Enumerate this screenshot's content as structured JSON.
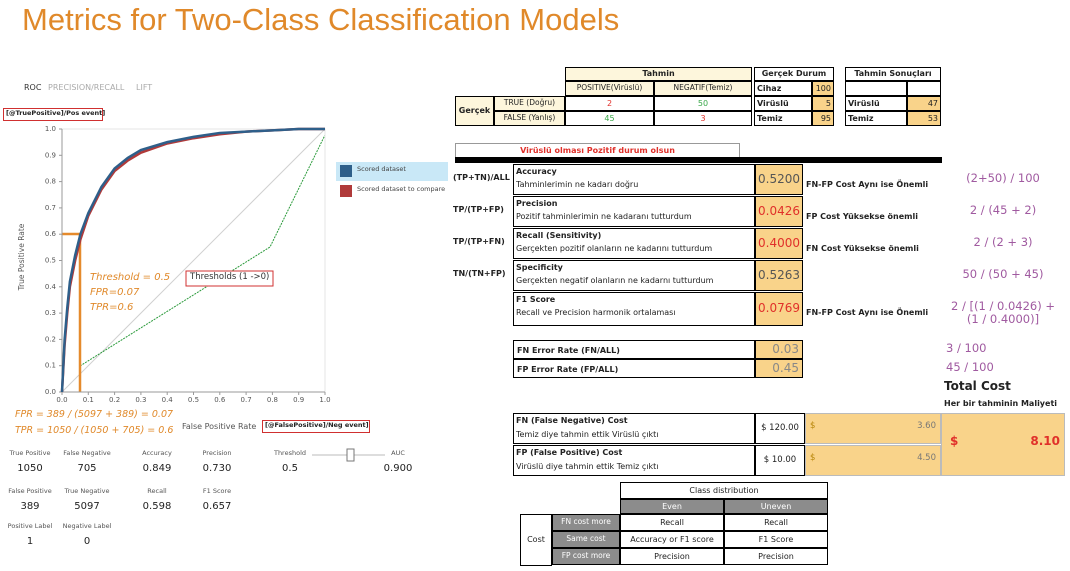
{
  "title": "Metrics for Two-Class Classification Models",
  "roc": {
    "tabs": [
      "ROC",
      "PRECISION/RECALL",
      "LIFT"
    ],
    "y_axis_tag": "[@TruePositive]/Pos event]",
    "y_label": "True Positive Rate",
    "x_label": "False Positive Rate",
    "x_axis_tag": "[@FalsePositive]/Neg event]",
    "xlim": [
      0,
      1
    ],
    "ylim": [
      0,
      1
    ],
    "xticks": [
      {
        "value": 0,
        "label": "0.0"
      },
      0.1,
      0.2,
      0.3,
      0.4,
      0.5,
      0.6,
      0.7,
      0.8,
      0.9,
      {
        "value": 1,
        "label": "1.0"
      }
    ],
    "yticks": [
      {
        "value": 0,
        "label": "0.0"
      },
      0.1,
      0.2,
      0.3,
      0.4,
      0.5,
      0.6,
      0.7,
      0.8,
      0.9,
      {
        "value": 1,
        "label": "1.0"
      }
    ],
    "series": [
      {
        "name": "Scored dataset",
        "color": "#2e5f8a",
        "x": [
          0,
          0.01,
          0.02,
          0.03,
          0.05,
          0.07,
          0.1,
          0.15,
          0.2,
          0.25,
          0.3,
          0.4,
          0.5,
          0.6,
          0.7,
          0.8,
          0.9,
          1
        ],
        "y": [
          0,
          0.2,
          0.32,
          0.42,
          0.52,
          0.6,
          0.68,
          0.78,
          0.85,
          0.89,
          0.92,
          0.95,
          0.97,
          0.985,
          0.99,
          0.995,
          1,
          1
        ]
      },
      {
        "name": "Scored dataset to compare",
        "color": "#b03a3a",
        "x": [
          0,
          0.01,
          0.02,
          0.03,
          0.05,
          0.07,
          0.1,
          0.15,
          0.2,
          0.25,
          0.3,
          0.4,
          0.5,
          0.6,
          0.7,
          0.8,
          0.9,
          1
        ],
        "y": [
          0,
          0.18,
          0.3,
          0.4,
          0.5,
          0.58,
          0.67,
          0.77,
          0.84,
          0.88,
          0.91,
          0.945,
          0.965,
          0.98,
          0.99,
          0.995,
          1,
          1
        ]
      }
    ],
    "threshold_note": "Threshold = 0.5",
    "fpr_note": "FPR=0.07",
    "tpr_note": "TPR=0.6",
    "thresholds_box": "Thresholds (1 ->0)",
    "fpr_formula": "FPR = 389 / (5097 + 389) = 0.07",
    "tpr_formula": "TPR = 1050 / (1050 + 705) = 0.6",
    "stats": [
      [
        {
          "label": "True Positive",
          "value": "1050"
        },
        {
          "label": "False Negative",
          "value": "705"
        },
        {
          "label": "Accuracy",
          "value": "0.849"
        },
        {
          "label": "Precision",
          "value": "0.730"
        },
        {
          "label": "Threshold",
          "value": "0.5"
        },
        {
          "label": "AUC",
          "value": "0.900"
        }
      ],
      [
        {
          "label": "False Positive",
          "value": "389"
        },
        {
          "label": "True Negative",
          "value": "5097"
        },
        {
          "label": "Recall",
          "value": "0.598"
        },
        {
          "label": "F1 Score",
          "value": "0.657"
        }
      ],
      [
        {
          "label": "Positive Label",
          "value": "1"
        },
        {
          "label": "Negative Label",
          "value": "0"
        }
      ]
    ]
  },
  "confusion": {
    "header": "Tahmin",
    "columns": [
      "POSITIVE(Virüslü)",
      "NEGATIF(Temiz)"
    ],
    "row_group": "Gerçek",
    "rows": [
      {
        "label": "TRUE (Doğru)",
        "values": [
          2,
          50
        ],
        "colors": [
          "#e0302a",
          "#3aa84a"
        ]
      },
      {
        "label": "FALSE (Yanlış)",
        "values": [
          45,
          3
        ],
        "colors": [
          "#3aa84a",
          "#e0302a"
        ]
      }
    ]
  },
  "actual": {
    "header": "Gerçek Durum",
    "rows": [
      [
        "Cihaz",
        100
      ],
      [
        "Virüslü",
        5
      ],
      [
        "Temiz",
        95
      ]
    ]
  },
  "predicted": {
    "header": "Tahmin Sonuçları",
    "rows": [
      [
        "Virüslü",
        47
      ],
      [
        "Temiz",
        53
      ]
    ]
  },
  "note": "Virüslü olması Pozitif durum olsun",
  "metrics": [
    {
      "formula": "(TP+TN)/ALL",
      "name": "Accuracy",
      "description": "Tahminlerimin ne kadarı doğru",
      "value": "0.5200",
      "color": "#555555",
      "importance": "FN-FP Cost Aynı ise Önemli",
      "calculation": "(2+50) / 100"
    },
    {
      "formula": "TP/(TP+FP)",
      "name": "Precision",
      "description": "Pozitif tahminlerimin ne kadaranı tutturdum",
      "value": "0.0426",
      "color": "#e0302a",
      "importance": "FP Cost Yüksekse önemli",
      "calculation": "2 / (45 + 2)"
    },
    {
      "formula": "TP/(TP+FN)",
      "name": "Recall (Sensitivity)",
      "description": "Gerçekten pozitif olanların ne kadarını tutturdum",
      "value": "0.4000",
      "color": "#e0302a",
      "importance": "FN Cost Yüksekse önemli",
      "calculation": "2 / (2 + 3)"
    },
    {
      "formula": "TN/(TN+FP)",
      "name": "Specificity",
      "description": "Gerçekten negatif olanların ne kadarnı tutturdum",
      "value": "0.5263",
      "color": "#555555",
      "calculation": "50 / (50 + 45)"
    },
    {
      "name": "F1 Score",
      "description": "Recall ve Precision harmonik ortalaması",
      "value": "0.0769",
      "color": "#e0302a",
      "importance": "FN-FP Cost Aynı ise Önemli",
      "calculation": "2 / [(1 / 0.0426) + (1 / 0.4000)]"
    }
  ],
  "error_rates": [
    {
      "name": "FN Error Rate (FN/ALL)",
      "value": "0.03",
      "calculation": "3 / 100"
    },
    {
      "name": "FP Error Rate (FP/ALL)",
      "value": "0.45",
      "calculation": "45 / 100"
    }
  ],
  "total_cost": {
    "title": "Total Cost",
    "subtitle": "Her bir tahminin Maliyeti",
    "currency": "$",
    "value": "8.10"
  },
  "costs": [
    {
      "name": "FN (False Negative) Cost",
      "description": "Temiz diye tahmin ettik Virüslü çıktı",
      "unit_cost": "$ 120.00",
      "currency": "$",
      "cost": "3.60"
    },
    {
      "name": "FP (False Positive) Cost",
      "description": "Virüslü diye tahmin ettik Temiz çıktı",
      "unit_cost": "$ 10.00",
      "currency": "$",
      "cost": "4.50"
    }
  ],
  "class_distribution": {
    "title": "Class distribution",
    "columns": [
      "Even",
      "Uneven"
    ],
    "row_group": "Cost",
    "rows": [
      {
        "label": "FN cost more",
        "values": [
          "Recall",
          "Recall"
        ]
      },
      {
        "label": "Same cost",
        "values": [
          "Accuracy or F1 score",
          "F1 Score"
        ]
      },
      {
        "label": "FP cost more",
        "values": [
          "Precision",
          "Precision"
        ]
      }
    ]
  }
}
